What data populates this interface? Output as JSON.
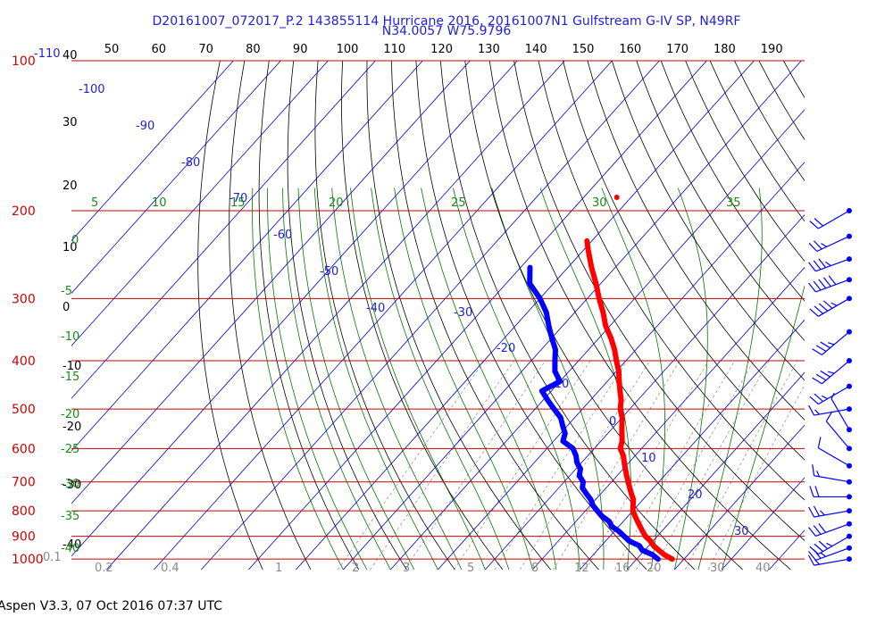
{
  "header": {
    "line1": "D20161007_072017_P.2 143855114 Hurricane 2016, 20161007N1 Gulfstream G-IV SP, N49RF",
    "line2": "N34.0057 W75.9796"
  },
  "footer": "Aspen V3.3, 07 Oct 2016  07:37 UTC",
  "chart_data": {
    "type": "line",
    "title": "D20161007_072017_P.2 143855114 Hurricane 2016, 20161007N1 Gulfstream G-IV SP, N49RF",
    "subtitle": "N34.0057 W75.9796",
    "xlabel": "",
    "ylabel": "",
    "colors": {
      "temperature": "#ff0000",
      "dewpoint": "#0000ff",
      "isobar": "#cc0000",
      "isotherm": "#0000cc",
      "dry_adiabat": "#000000",
      "moist_adiabat": "#007700",
      "mixing_ratio": "#8a8a8a",
      "wind": "#0000ff"
    },
    "pressure_levels_hPa": [
      100,
      200,
      300,
      400,
      500,
      600,
      700,
      800,
      900,
      1000
    ],
    "pressure_labels": [
      "100",
      "200",
      "300",
      "400",
      "500",
      "600",
      "700",
      "800",
      "900",
      "1000"
    ],
    "top_scale_labels": [
      "50",
      "60",
      "70",
      "80",
      "90",
      "100",
      "110",
      "120",
      "130",
      "140",
      "150",
      "160",
      "170",
      "180",
      "190"
    ],
    "left_scale_labels": [
      "40",
      "30",
      "20",
      "10",
      "0",
      "-10",
      "-20",
      "-30",
      "-40"
    ],
    "isotherm_labels": [
      "-110",
      "-100",
      "-90",
      "-80",
      "-70",
      "-60",
      "-50",
      "-40",
      "-30",
      "-20",
      "-10",
      "0",
      "10",
      "20",
      "30"
    ],
    "moist_adiabat_labels": [
      "5",
      "10",
      "15",
      "20",
      "25",
      "30",
      "35"
    ],
    "left_green_labels": [
      "0",
      "-5",
      "-10",
      "-15",
      "-20",
      "-25",
      "-30",
      "-35",
      "-40"
    ],
    "mixing_ratio_labels": [
      "0.1",
      "0.2",
      "0.4",
      "1",
      "2",
      "3",
      "5",
      "8",
      "12",
      "16",
      "20",
      "30",
      "40"
    ],
    "series": [
      {
        "key": "temperature",
        "unit": "°C",
        "pressure": [
          1000,
          980,
          960,
          940,
          920,
          900,
          880,
          860,
          840,
          820,
          800,
          780,
          760,
          740,
          720,
          700,
          680,
          660,
          640,
          620,
          600,
          580,
          560,
          540,
          520,
          500,
          480,
          460,
          440,
          420,
          400,
          380,
          360,
          340,
          320,
          300,
          280,
          260,
          240,
          230
        ],
        "values": [
          27.5,
          25,
          23,
          21,
          19.5,
          17.5,
          16,
          14.5,
          13,
          11.5,
          10,
          9,
          8,
          6.5,
          5,
          3.5,
          2,
          0.5,
          -1,
          -2.5,
          -4.5,
          -5.5,
          -7,
          -8.5,
          -10,
          -12,
          -13.5,
          -15.5,
          -17.5,
          -19.5,
          -22,
          -24.5,
          -27.5,
          -31,
          -34,
          -37.5,
          -41,
          -45,
          -49,
          -51
        ]
      },
      {
        "key": "dewpoint",
        "unit": "°C",
        "pressure": [
          1000,
          980,
          960,
          940,
          920,
          900,
          880,
          860,
          840,
          820,
          800,
          780,
          760,
          740,
          720,
          700,
          680,
          660,
          640,
          620,
          600,
          580,
          560,
          540,
          520,
          500,
          480,
          460,
          440,
          420,
          400,
          380,
          360,
          340,
          320,
          300,
          280,
          260
        ],
        "values": [
          24.5,
          22.5,
          19.5,
          18,
          15,
          13,
          11,
          8.5,
          7,
          4.5,
          2.5,
          0.5,
          -1,
          -3,
          -5,
          -6,
          -8,
          -9,
          -11,
          -12.5,
          -14.5,
          -18,
          -19,
          -21,
          -23,
          -26,
          -29,
          -32,
          -30,
          -33,
          -35,
          -37,
          -40,
          -43,
          -46,
          -50,
          -55,
          -58
        ]
      }
    ],
    "wind_barbs": {
      "pressure": [
        1000,
        950,
        900,
        850,
        800,
        750,
        700,
        650,
        600,
        550,
        500,
        450,
        400,
        350,
        300,
        275,
        250,
        225,
        200
      ],
      "speed_kt": [
        15,
        25,
        35,
        30,
        25,
        20,
        15,
        10,
        10,
        5,
        15,
        25,
        35,
        35,
        45,
        50,
        35,
        25,
        20
      ],
      "direction_deg": [
        260,
        250,
        240,
        250,
        260,
        270,
        280,
        300,
        320,
        330,
        260,
        240,
        230,
        230,
        240,
        250,
        250,
        245,
        240
      ]
    },
    "isolated_point": {
      "series": "temperature",
      "pressure": 188,
      "value": -53
    }
  }
}
